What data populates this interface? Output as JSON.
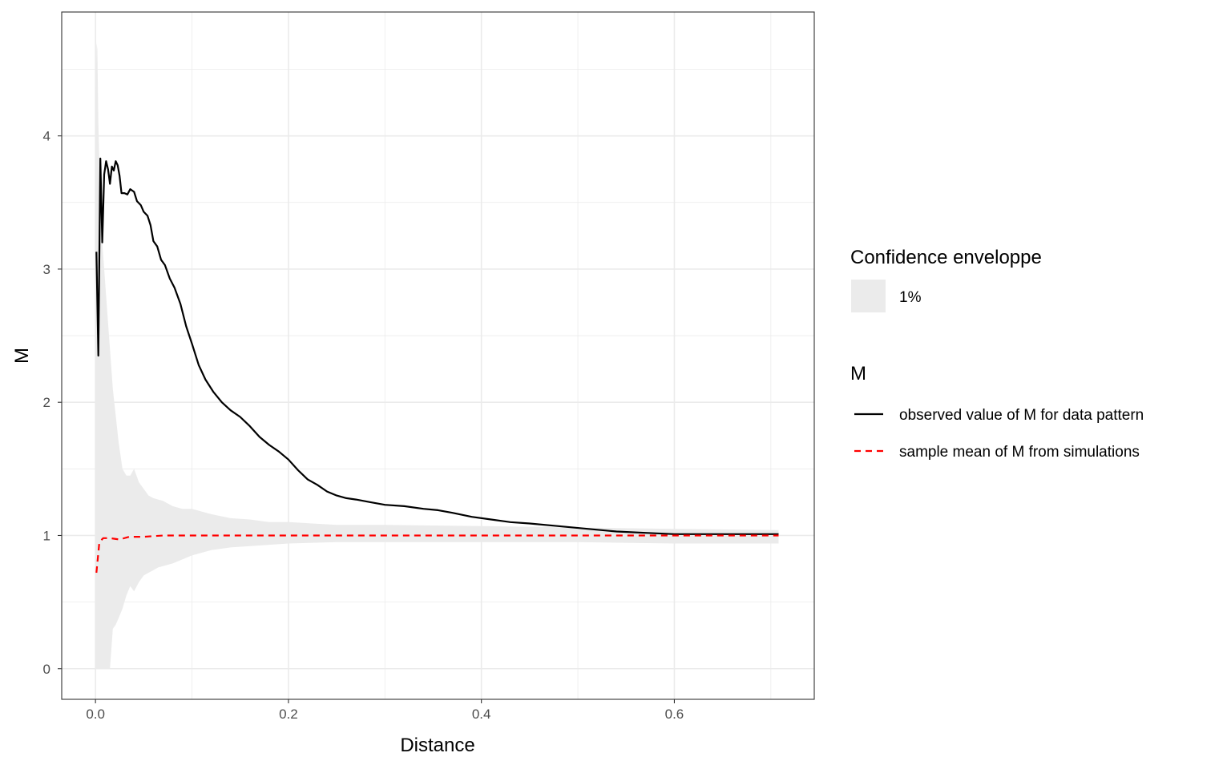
{
  "chart_data": {
    "type": "line",
    "xlabel": "Distance",
    "ylabel": "M",
    "xlim": [
      -0.035,
      0.745
    ],
    "ylim": [
      -0.23,
      4.93
    ],
    "x_ticks": [
      0.0,
      0.2,
      0.4,
      0.6
    ],
    "x_tick_labels": [
      "0.0",
      "0.2",
      "0.4",
      "0.6"
    ],
    "y_ticks": [
      0,
      1,
      2,
      3,
      4
    ],
    "y_tick_labels": [
      "0",
      "1",
      "2",
      "3",
      "4"
    ],
    "grid": true,
    "legend_position": "right",
    "colors": {
      "envelope": "#ebebeb",
      "observed": "#000000",
      "mean": "#ff0000",
      "grid": "#ebebeb",
      "panel_border": "#333333"
    },
    "legend": {
      "envelope_title": "Confidence enveloppe",
      "envelope_label": "1%",
      "lines_title": "M",
      "observed_label": "observed value of M for data pattern",
      "mean_label": "sample mean of M from simulations"
    },
    "series": [
      {
        "name": "observed value of M for data pattern",
        "x": [
          0.001,
          0.003,
          0.005,
          0.007,
          0.009,
          0.011,
          0.013,
          0.015,
          0.017,
          0.019,
          0.021,
          0.023,
          0.025,
          0.027,
          0.03,
          0.033,
          0.036,
          0.04,
          0.043,
          0.047,
          0.05,
          0.054,
          0.057,
          0.06,
          0.064,
          0.068,
          0.072,
          0.077,
          0.082,
          0.088,
          0.094,
          0.1,
          0.107,
          0.114,
          0.122,
          0.131,
          0.14,
          0.15,
          0.16,
          0.17,
          0.18,
          0.19,
          0.2,
          0.21,
          0.22,
          0.23,
          0.24,
          0.25,
          0.26,
          0.27,
          0.285,
          0.3,
          0.32,
          0.34,
          0.355,
          0.37,
          0.39,
          0.41,
          0.43,
          0.45,
          0.48,
          0.51,
          0.54,
          0.57,
          0.6,
          0.63,
          0.66,
          0.69,
          0.708
        ],
        "y": [
          3.13,
          2.35,
          3.83,
          3.2,
          3.71,
          3.81,
          3.75,
          3.64,
          3.77,
          3.74,
          3.81,
          3.78,
          3.7,
          3.57,
          3.57,
          3.56,
          3.6,
          3.58,
          3.51,
          3.48,
          3.43,
          3.4,
          3.33,
          3.21,
          3.17,
          3.07,
          3.03,
          2.93,
          2.86,
          2.74,
          2.57,
          2.44,
          2.28,
          2.17,
          2.08,
          2.0,
          1.94,
          1.89,
          1.82,
          1.74,
          1.68,
          1.63,
          1.57,
          1.49,
          1.42,
          1.38,
          1.33,
          1.3,
          1.28,
          1.27,
          1.25,
          1.23,
          1.22,
          1.2,
          1.19,
          1.17,
          1.14,
          1.12,
          1.1,
          1.09,
          1.07,
          1.05,
          1.03,
          1.02,
          1.01,
          1.01,
          1.01,
          1.01,
          1.01
        ]
      },
      {
        "name": "sample mean of M from simulations",
        "x": [
          0.001,
          0.004,
          0.008,
          0.015,
          0.025,
          0.035,
          0.05,
          0.07,
          0.09,
          0.12,
          0.2,
          0.3,
          0.4,
          0.5,
          0.6,
          0.7,
          0.708
        ],
        "y": [
          0.72,
          0.95,
          0.98,
          0.98,
          0.97,
          0.99,
          0.99,
          1.0,
          1.0,
          1.0,
          1.0,
          1.0,
          1.0,
          1.0,
          1.0,
          1.0,
          1.0
        ]
      }
    ],
    "envelope": {
      "x": [
        0.0,
        0.001,
        0.002,
        0.003,
        0.004,
        0.005,
        0.006,
        0.008,
        0.01,
        0.012,
        0.015,
        0.018,
        0.021,
        0.024,
        0.028,
        0.032,
        0.036,
        0.04,
        0.045,
        0.05,
        0.055,
        0.06,
        0.065,
        0.07,
        0.08,
        0.09,
        0.1,
        0.12,
        0.14,
        0.16,
        0.18,
        0.2,
        0.25,
        0.3,
        0.4,
        0.5,
        0.6,
        0.708
      ],
      "upper": [
        4.0,
        4.7,
        4.65,
        4.1,
        3.8,
        3.5,
        3.3,
        3.1,
        2.9,
        2.7,
        2.4,
        2.1,
        1.9,
        1.7,
        1.5,
        1.45,
        1.45,
        1.5,
        1.4,
        1.35,
        1.3,
        1.28,
        1.27,
        1.26,
        1.22,
        1.2,
        1.2,
        1.16,
        1.13,
        1.12,
        1.1,
        1.1,
        1.08,
        1.08,
        1.07,
        1.06,
        1.05,
        1.04
      ],
      "lower": [
        0.0,
        0.0,
        0.0,
        0.0,
        0.0,
        0.0,
        0.0,
        0.0,
        0.0,
        0.0,
        0.0,
        0.3,
        0.33,
        0.38,
        0.45,
        0.55,
        0.62,
        0.58,
        0.65,
        0.7,
        0.72,
        0.74,
        0.76,
        0.77,
        0.79,
        0.82,
        0.85,
        0.89,
        0.91,
        0.92,
        0.93,
        0.94,
        0.95,
        0.95,
        0.95,
        0.95,
        0.94,
        0.94
      ]
    }
  }
}
